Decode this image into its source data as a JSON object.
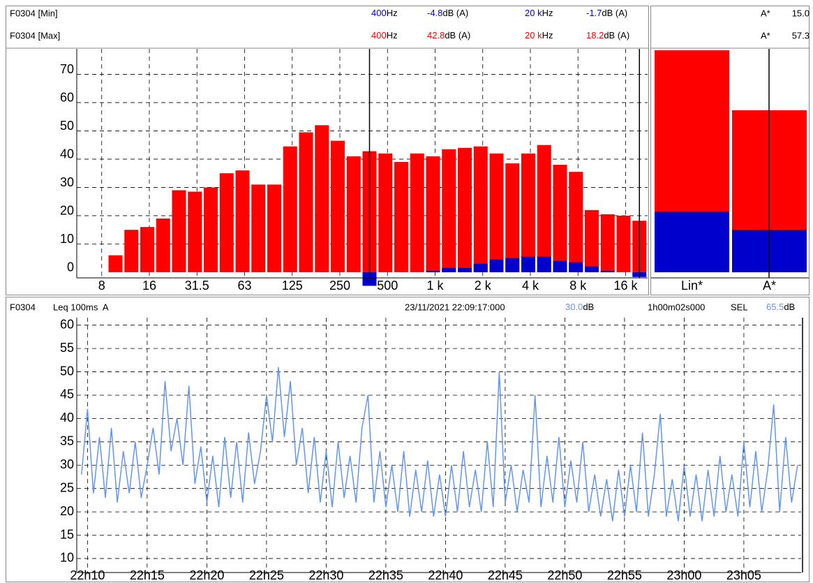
{
  "chart_data": [
    {
      "type": "bar",
      "categories": [
        null,
        "8",
        null,
        null,
        "16",
        null,
        null,
        "31.5",
        null,
        null,
        "63",
        null,
        null,
        "125",
        null,
        null,
        "250",
        null,
        null,
        "500",
        null,
        null,
        "1 k",
        null,
        null,
        "2 k",
        null,
        null,
        "4 k",
        null,
        null,
        "8 k",
        null,
        null,
        "16 k",
        null
      ],
      "series": [
        {
          "name": "F0304 [Min]",
          "color": "#0000cc",
          "values": [
            null,
            null,
            null,
            null,
            null,
            null,
            null,
            null,
            null,
            null,
            null,
            null,
            null,
            null,
            null,
            null,
            null,
            null,
            -4.8,
            null,
            null,
            null,
            0.5,
            1.5,
            1.5,
            3,
            4.5,
            5,
            5.5,
            5.5,
            4,
            3.5,
            2,
            0.5,
            null,
            -1.7
          ]
        },
        {
          "name": "F0304 [Max]",
          "color": "#ff0000",
          "values": [
            null,
            null,
            6,
            15,
            16,
            19,
            29,
            28.5,
            30,
            35,
            36,
            31,
            31,
            44.5,
            49.5,
            52,
            46.5,
            41,
            42.8,
            42,
            39,
            42,
            41,
            43.5,
            44,
            44.5,
            42,
            38.5,
            42,
            45,
            38,
            35.5,
            22,
            20.5,
            20,
            18.2
          ]
        }
      ],
      "cursors": [
        {
          "label": "400",
          "unit": "Hz"
        },
        {
          "label": "20 k",
          "unit": "Hz"
        }
      ],
      "level_unit": "dB (A)",
      "ylim": [
        -2,
        79
      ],
      "yticks": [
        0,
        10,
        20,
        30,
        40,
        50,
        60,
        70
      ],
      "grid": true
    },
    {
      "type": "bar",
      "categories": [
        "Lin*",
        "A*"
      ],
      "series": [
        {
          "name": "Min",
          "color": "#0000cc",
          "values": [
            21.5,
            15.0
          ],
          "value_labels": [
            null,
            "15.0"
          ]
        },
        {
          "name": "Max",
          "color": "#ff0000",
          "values": [
            78.5,
            57.3
          ]
        }
      ],
      "ylim": [
        -2,
        79
      ]
    },
    {
      "type": "line",
      "header": {
        "channel": "F0304",
        "measure": "Leq 100ms  A",
        "cursor_time": "23/11/2021 22:09:17:000",
        "cursor_value": "30.0",
        "unit": "dB",
        "duration": "1h00m02s000",
        "sel_label": "SEL",
        "sel_value": "65.5"
      },
      "color": "#6495ed",
      "x": [
        9.5,
        10,
        10.5,
        11,
        11.5,
        12,
        12.5,
        13,
        13.5,
        14,
        14.5,
        15,
        15.5,
        16,
        16.5,
        17,
        17.5,
        18,
        18.5,
        19,
        19.5,
        20,
        20.5,
        21,
        21.5,
        22,
        22.5,
        23,
        23.5,
        24,
        24.5,
        25,
        25.5,
        26,
        26.5,
        27,
        27.5,
        28,
        28.5,
        29,
        29.5,
        30,
        30.5,
        31,
        31.5,
        32,
        32.5,
        33,
        33.5,
        34,
        34.5,
        35,
        35.5,
        36,
        36.5,
        37,
        37.5,
        38,
        38.5,
        39,
        39.5,
        40,
        40.5,
        41,
        41.5,
        42,
        42.5,
        43,
        43.5,
        44,
        44.5,
        45,
        45.5,
        46,
        46.5,
        47,
        47.5,
        48,
        48.5,
        49,
        49.5,
        50,
        50.5,
        51,
        51.5,
        52,
        52.5,
        53,
        53.5,
        54,
        54.5,
        55,
        55.5,
        56,
        56.5,
        57,
        57.5,
        58,
        58.5,
        59,
        59.5,
        60,
        60.5,
        61,
        61.5,
        62,
        62.5,
        63,
        63.5,
        64,
        64.5,
        65,
        65.5,
        66,
        66.5,
        67,
        67.5,
        68,
        68.5,
        69,
        69.5
      ],
      "values": [
        28,
        42,
        24,
        36,
        23,
        38,
        22,
        33,
        24,
        35,
        23,
        30,
        38,
        28,
        48,
        33,
        40,
        30,
        47,
        26,
        34,
        22,
        32,
        21,
        36,
        23,
        35,
        22,
        37,
        26,
        33,
        45,
        35,
        51,
        36,
        48,
        30,
        38,
        24,
        36,
        22,
        33,
        21,
        35,
        23,
        32,
        22,
        38,
        45,
        22,
        33,
        21,
        30,
        20,
        33,
        19,
        29,
        20,
        31,
        19,
        28,
        19,
        30,
        20,
        33,
        21,
        29,
        20,
        35,
        21,
        50,
        22,
        30,
        20,
        29,
        22,
        45,
        21,
        32,
        22,
        36,
        21,
        31,
        22,
        35,
        20,
        28,
        19,
        27,
        18,
        29,
        19,
        30,
        20,
        37,
        19,
        28,
        41,
        19,
        27,
        18,
        30,
        19,
        28,
        18,
        29,
        19,
        32,
        20,
        28,
        19,
        35,
        21,
        33,
        20,
        29,
        43,
        20,
        36,
        22,
        30
      ],
      "xlim": [
        9.1,
        69.8
      ],
      "xticks": [
        {
          "value": 10,
          "label": "22h10"
        },
        {
          "value": 15,
          "label": "22h15"
        },
        {
          "value": 20,
          "label": "22h20"
        },
        {
          "value": 25,
          "label": "22h25"
        },
        {
          "value": 30,
          "label": "22h30"
        },
        {
          "value": 35,
          "label": "22h35"
        },
        {
          "value": 40,
          "label": "22h40"
        },
        {
          "value": 45,
          "label": "22h45"
        },
        {
          "value": 50,
          "label": "22h50"
        },
        {
          "value": 55,
          "label": "22h55"
        },
        {
          "value": 60,
          "label": "23h00"
        },
        {
          "value": 65,
          "label": "23h05"
        }
      ],
      "ylim": [
        7,
        61.6
      ],
      "yticks": [
        10,
        15,
        20,
        25,
        30,
        35,
        40,
        45,
        50,
        55,
        60
      ],
      "grid": true
    }
  ]
}
